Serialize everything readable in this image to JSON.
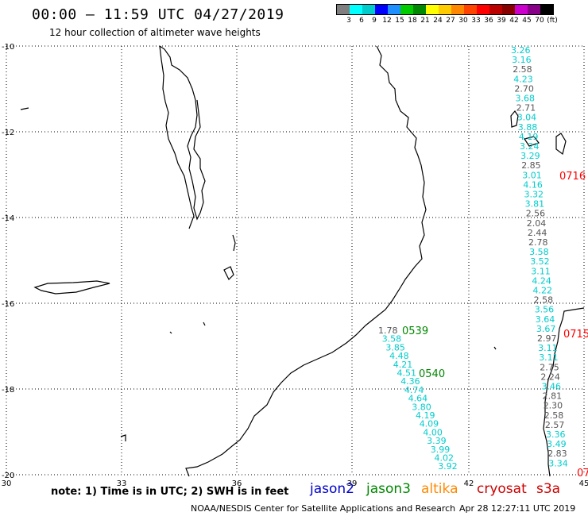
{
  "header": {
    "title": "00:00 – 11:59 UTC 04/27/2019",
    "subtitle": "12 hour collection of altimeter wave heights"
  },
  "scale": {
    "colors": [
      "#7f7f7f",
      "#00ffff",
      "#00cccc",
      "#0000ff",
      "#1e90ff",
      "#00cc00",
      "#008800",
      "#ffff00",
      "#ffcc00",
      "#ff8800",
      "#ff4400",
      "#ff0000",
      "#bb0000",
      "#880000",
      "#cc00cc",
      "#880088",
      "#000000"
    ],
    "labels": [
      "3",
      "6",
      "9",
      "12",
      "15",
      "18",
      "21",
      "24",
      "27",
      "30",
      "33",
      "36",
      "39",
      "42",
      "45",
      "70",
      "(ft)"
    ]
  },
  "axes": {
    "x_ticks": [
      "30",
      "33",
      "36",
      "39",
      "42",
      "45"
    ],
    "y_ticks": [
      "-10",
      "-12",
      "-14",
      "-16",
      "-18",
      "-20"
    ]
  },
  "tracks": [
    {
      "satellite": "jason3",
      "label": "0539",
      "color": "#008800"
    },
    {
      "satellite": "jason3",
      "label": "0540",
      "color": "#008800"
    },
    {
      "satellite": "s3a",
      "label": "0716",
      "color": "#ff0000"
    },
    {
      "satellite": "s3a",
      "label": "0715",
      "color": "#ff0000"
    },
    {
      "satellite": "s3a",
      "label": "07",
      "color": "#ff0000"
    }
  ],
  "wave_heights_track_a": [
    "1.78",
    "3.58",
    "3.85",
    "4.48",
    "4.21",
    "4.51",
    "4.36",
    "4.74",
    "4.64",
    "3.80",
    "4.19",
    "4.09",
    "4.00",
    "3.39",
    "3.99",
    "4.02",
    "3.92"
  ],
  "wave_heights_track_b": [
    "3.26",
    "3.16",
    "2.58",
    "4.23",
    "2.70",
    "3.68",
    "2.71",
    "3.04",
    "3.88",
    "4.19",
    "3.24",
    "3.29",
    "2.85",
    "3.01",
    "4.16",
    "3.32",
    "3.81",
    "2.56",
    "2.04",
    "2.44",
    "2.78",
    "3.58",
    "3.52",
    "3.11",
    "4.24",
    "4.22",
    "2.58",
    "3.56",
    "3.64",
    "3.67",
    "2.97",
    "3.11",
    "3.11",
    "2.75",
    "2.24",
    "3.46",
    "2.81",
    "2.30",
    "2.58",
    "2.57",
    "3.36",
    "3.49",
    "2.83",
    "3.34"
  ],
  "footer": {
    "note": "note: 1) Time is in UTC; 2) SWH is in feet",
    "legend": [
      {
        "name": "jason2",
        "color": "#0000cc"
      },
      {
        "name": "jason3",
        "color": "#008800"
      },
      {
        "name": "altika",
        "color": "#ff8800"
      },
      {
        "name": "cryosat",
        "color": "#cc0000"
      },
      {
        "name": "s3a",
        "color": "#cc0000"
      }
    ],
    "credit": "NOAA/NESDIS Center for Satellite Applications and Research",
    "timestamp": "Apr 28 12:27:11 UTC 2019"
  }
}
